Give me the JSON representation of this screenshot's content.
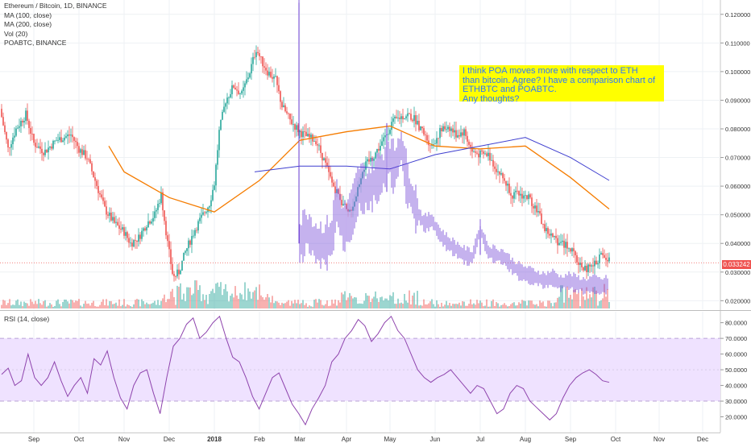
{
  "legend": {
    "title": "Ethereum / Bitcoin, 1D, BINANCE",
    "ma100": "MA (100, close)",
    "ma200": "MA (200, close)",
    "vol": "Vol (20)",
    "compare": "POABTC, BINANCE"
  },
  "rsi_legend": "RSI (14, close)",
  "annotation": {
    "lines": [
      "I think POA moves more with respect to ETH",
      "than bitcoin. Agree? I have a comparison chart of",
      "ETHBTC and POABTC.",
      "Any thoughts?"
    ]
  },
  "price_tag": "0.033242",
  "colors": {
    "up": "#26a69a",
    "down": "#ef5350",
    "ma100": "#f57c00",
    "ma200": "#3f3fcf",
    "poa": "#6e3fd6",
    "rsi_line": "#8e44ad",
    "rsi_band": "#efe2ff",
    "annotation_bg": "#ffff00",
    "annotation_text": "#2b78ff"
  },
  "chart_data": [
    {
      "type": "candlestick",
      "title": "Ethereum / Bitcoin, 1D, BINANCE",
      "x_ticks": [
        "Sep",
        "Oct",
        "Nov",
        "Dec",
        "2018",
        "Feb",
        "Mar",
        "Apr",
        "May",
        "Jun",
        "Jul",
        "Aug",
        "Sep",
        "Oct",
        "Nov",
        "Dec"
      ],
      "y_ticks": [
        "0.120000",
        "0.110000",
        "0.100000",
        "0.090000",
        "0.080000",
        "0.070000",
        "0.060000",
        "0.050000",
        "0.040000",
        "0.030000",
        "0.020000"
      ],
      "ylim": [
        0.017,
        0.125
      ],
      "grid": true,
      "last_price": 0.033242,
      "series": [
        {
          "name": "MA (100, close)",
          "points": [
            [
              "Oct",
              0.074
            ],
            [
              "Nov",
              0.065
            ],
            [
              "Dec",
              0.056
            ],
            [
              "2018",
              0.051
            ],
            [
              "Feb",
              0.062
            ],
            [
              "Mar",
              0.076
            ],
            [
              "Apr",
              0.079
            ],
            [
              "May",
              0.081
            ],
            [
              "Jun",
              0.074
            ],
            [
              "Jul",
              0.073
            ],
            [
              "Aug",
              0.074
            ],
            [
              "Sep",
              0.063
            ],
            [
              "Oct",
              0.052
            ]
          ]
        },
        {
          "name": "MA (200, close)",
          "points": [
            [
              "Feb",
              0.065
            ],
            [
              "Mar",
              0.067
            ],
            [
              "Apr",
              0.067
            ],
            [
              "May",
              0.066
            ],
            [
              "Jun",
              0.071
            ],
            [
              "Jul",
              0.074
            ],
            [
              "Aug",
              0.077
            ],
            [
              "Sep",
              0.07
            ],
            [
              "Oct",
              0.062
            ]
          ]
        },
        {
          "name": "POABTC, BINANCE",
          "points": [
            [
              "Mar",
              0.124
            ],
            [
              "Mar",
              0.04
            ],
            [
              "Apr",
              0.044
            ],
            [
              "Apr",
              0.062
            ],
            [
              "May",
              0.068
            ],
            [
              "Jun",
              0.047
            ],
            [
              "Jul",
              0.039
            ],
            [
              "Aug",
              0.03
            ],
            [
              "Sep",
              0.026
            ],
            [
              "Oct",
              0.026
            ]
          ]
        }
      ],
      "volume": "Vol (20)"
    },
    {
      "type": "line",
      "title": "RSI (14, close)",
      "y_ticks": [
        "80.0000",
        "70.0000",
        "60.0000",
        "50.0000",
        "40.0000",
        "30.0000",
        "20.0000"
      ],
      "ylim": [
        10,
        87
      ],
      "band": [
        30,
        70
      ],
      "values": [
        47,
        51,
        40,
        43,
        60,
        45,
        40,
        45,
        55,
        43,
        33,
        40,
        45,
        35,
        57,
        53,
        62,
        45,
        32,
        25,
        40,
        48,
        50,
        35,
        22,
        45,
        65,
        70,
        79,
        83,
        70,
        74,
        80,
        84,
        70,
        58,
        55,
        45,
        33,
        25,
        35,
        45,
        48,
        38,
        28,
        22,
        15,
        25,
        32,
        40,
        55,
        60,
        70,
        75,
        82,
        78,
        68,
        73,
        80,
        84,
        75,
        70,
        60,
        50,
        45,
        42,
        45,
        47,
        50,
        45,
        40,
        35,
        40,
        38,
        30,
        22,
        25,
        35,
        40,
        38,
        30,
        26,
        22,
        18,
        22,
        32,
        40,
        45,
        48,
        50,
        47,
        43,
        42
      ]
    }
  ]
}
